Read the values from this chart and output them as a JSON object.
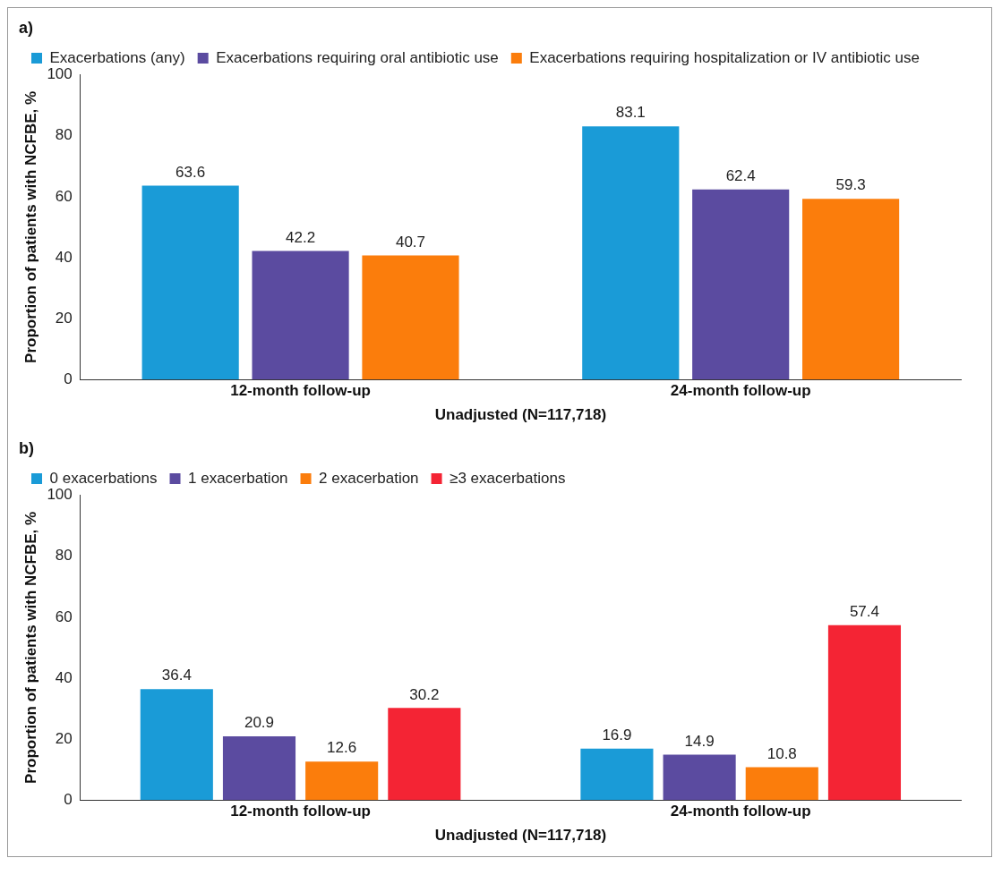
{
  "chart_data": [
    {
      "type": "bar",
      "title": "a)",
      "xlabel": "Unadjusted (N=117,718)",
      "ylabel": "Proportion of patients with NCFBE, %",
      "categories": [
        "12-month follow-up",
        "24-month follow-up"
      ],
      "series": [
        {
          "name": "Exacerbations (any)",
          "color": "#1a9bd7",
          "values": [
            63.6,
            83.1
          ]
        },
        {
          "name": "Exacerbations requiring oral antibiotic use",
          "color": "#5b4ba0",
          "values": [
            42.2,
            62.4
          ]
        },
        {
          "name": "Exacerbations requiring hospitalization or IV antibiotic use",
          "color": "#fb7d0c",
          "values": [
            40.7,
            59.3
          ]
        }
      ],
      "ylim": [
        0,
        100
      ],
      "yticks": [
        0,
        20,
        40,
        60,
        80,
        100
      ],
      "grid": false,
      "legend": "top left",
      "data_labels": true
    },
    {
      "type": "bar",
      "title": "b)",
      "xlabel": "Unadjusted (N=117,718)",
      "ylabel": "Proportion of patients with NCFBE, %",
      "categories": [
        "12-month follow-up",
        "24-month follow-up"
      ],
      "series": [
        {
          "name": "0 exacerbations",
          "color": "#1a9bd7",
          "values": [
            36.4,
            16.9
          ]
        },
        {
          "name": "1 exacerbation",
          "color": "#5b4ba0",
          "values": [
            20.9,
            14.9
          ]
        },
        {
          "name": "2 exacerbation",
          "color": "#fb7d0c",
          "values": [
            12.6,
            10.8
          ]
        },
        {
          "name": "≥3 exacerbations",
          "color": "#f42434",
          "values": [
            30.2,
            57.4
          ]
        }
      ],
      "ylim": [
        0,
        100
      ],
      "yticks": [
        0,
        20,
        40,
        60,
        80,
        100
      ],
      "grid": false,
      "legend": "top left",
      "data_labels": true
    }
  ]
}
